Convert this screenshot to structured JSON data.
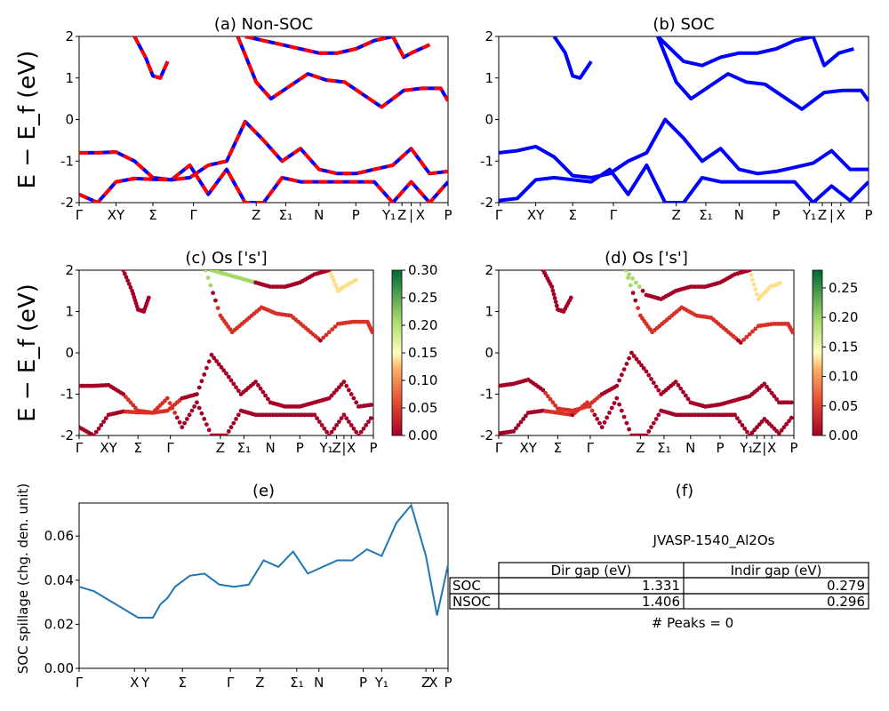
{
  "chart_data": [
    {
      "id": "a",
      "type": "line",
      "title": "(a) Non-SOC",
      "ylabel": "E − E_f (eV)",
      "ylim": [
        -2,
        2
      ],
      "yticks": [
        -2,
        -1,
        0,
        1,
        2
      ],
      "xlabels": [
        "Γ",
        "XY",
        "Σ",
        "Γ",
        "Z",
        "Σ₁",
        "N",
        "P",
        "Y₁",
        "Z",
        "|",
        "X",
        "P"
      ],
      "legend": "none",
      "series": [
        {
          "color": "#ff0000",
          "dashed": true,
          "x": [
            0,
            0.05,
            0.1,
            0.15,
            0.2,
            0.25,
            0.3,
            0.35,
            0.4,
            0.45,
            0.5,
            0.55,
            0.6,
            0.65,
            0.7,
            0.75,
            0.8,
            0.85,
            0.9,
            0.95,
            1.0
          ],
          "y": [
            -0.8,
            -0.8,
            -0.78,
            -1.0,
            -1.4,
            -1.45,
            -1.4,
            -1.1,
            -1.0,
            -0.05,
            -0.5,
            -1.0,
            -0.7,
            -1.2,
            -1.3,
            -1.3,
            -1.2,
            -1.1,
            -0.7,
            -1.3,
            -1.25
          ]
        },
        {
          "color": "#ff0000",
          "dashed": true,
          "x": [
            0,
            0.05,
            0.1,
            0.15,
            0.2,
            0.25,
            0.3,
            0.35,
            0.4,
            0.45,
            0.5,
            0.55,
            0.6,
            0.65,
            0.7,
            0.75,
            0.8,
            0.85,
            0.9,
            0.95,
            1.0
          ],
          "y": [
            -1.8,
            -2.0,
            -1.5,
            -1.42,
            -1.44,
            -1.45,
            -1.1,
            -1.8,
            -1.2,
            -2.0,
            -2.0,
            -1.4,
            -1.5,
            -1.5,
            -1.5,
            -1.5,
            -1.5,
            -2.0,
            -1.5,
            -2.0,
            -1.5
          ]
        },
        {
          "color": "#ff0000",
          "dashed": true,
          "x": [
            0.15,
            0.18,
            0.2,
            0.22,
            0.24
          ],
          "y": [
            2.0,
            1.5,
            1.05,
            1.0,
            1.4
          ]
        },
        {
          "color": "#ff0000",
          "dashed": true,
          "x": [
            0.43,
            0.48,
            0.52,
            0.57,
            0.62,
            0.67,
            0.72,
            0.77,
            0.82,
            0.88,
            0.93,
            0.98,
            1.0
          ],
          "y": [
            2.0,
            0.9,
            0.5,
            0.8,
            1.1,
            0.95,
            0.9,
            0.6,
            0.3,
            0.7,
            0.75,
            0.75,
            0.45
          ]
        },
        {
          "color": "#ff0000",
          "dashed": true,
          "x": [
            0.45,
            0.5,
            0.55,
            0.6,
            0.65,
            0.7,
            0.75,
            0.8,
            0.85,
            0.88,
            0.9,
            0.95
          ],
          "y": [
            2.0,
            1.9,
            1.8,
            1.7,
            1.6,
            1.6,
            1.7,
            1.9,
            2.0,
            1.5,
            1.6,
            1.8
          ]
        }
      ]
    },
    {
      "id": "b",
      "type": "line",
      "title": "(b) SOC",
      "ylim": [
        -2,
        2
      ],
      "yticks": [
        -2,
        -1,
        0,
        1,
        2
      ],
      "xlabels": [
        "Γ",
        "XY",
        "Σ",
        "Γ",
        "Z",
        "Σ₁",
        "N",
        "P",
        "Y₁",
        "Z",
        "|",
        "X",
        "P"
      ],
      "legend": "none",
      "series": [
        {
          "color": "#0000ff",
          "x": [
            0,
            0.05,
            0.1,
            0.15,
            0.2,
            0.25,
            0.3,
            0.35,
            0.4,
            0.45,
            0.5,
            0.55,
            0.6,
            0.65,
            0.7,
            0.75,
            0.8,
            0.85,
            0.9,
            0.95,
            1.0
          ],
          "y": [
            -0.8,
            -0.75,
            -0.65,
            -0.9,
            -1.35,
            -1.4,
            -1.3,
            -1.0,
            -0.8,
            0.0,
            -0.45,
            -1.0,
            -0.7,
            -1.2,
            -1.3,
            -1.25,
            -1.15,
            -1.05,
            -0.75,
            -1.2,
            -1.2
          ]
        },
        {
          "color": "#0000ff",
          "x": [
            0,
            0.05,
            0.1,
            0.15,
            0.2,
            0.25,
            0.3,
            0.35,
            0.4,
            0.45,
            0.5,
            0.55,
            0.6,
            0.65,
            0.7,
            0.75,
            0.8,
            0.85,
            0.9,
            0.95,
            1.0
          ],
          "y": [
            -1.95,
            -1.9,
            -1.45,
            -1.4,
            -1.45,
            -1.5,
            -1.2,
            -1.8,
            -1.1,
            -2.0,
            -2.0,
            -1.4,
            -1.5,
            -1.5,
            -1.5,
            -1.5,
            -1.5,
            -2.0,
            -1.6,
            -1.95,
            -1.5
          ]
        },
        {
          "color": "#0000ff",
          "x": [
            0.15,
            0.18,
            0.2,
            0.22,
            0.25
          ],
          "y": [
            2.0,
            1.6,
            1.05,
            1.0,
            1.4
          ]
        },
        {
          "color": "#0000ff",
          "x": [
            0.43,
            0.48,
            0.52,
            0.57,
            0.62,
            0.67,
            0.72,
            0.77,
            0.82,
            0.88,
            0.93,
            0.98,
            1.0
          ],
          "y": [
            2.0,
            0.9,
            0.5,
            0.8,
            1.1,
            0.9,
            0.85,
            0.55,
            0.25,
            0.65,
            0.7,
            0.7,
            0.45
          ]
        },
        {
          "color": "#0000ff",
          "x": [
            0.43,
            0.5,
            0.55,
            0.6,
            0.65,
            0.7,
            0.75,
            0.8,
            0.85,
            0.88,
            0.92,
            0.96
          ],
          "y": [
            2.0,
            1.4,
            1.3,
            1.5,
            1.6,
            1.6,
            1.7,
            1.9,
            2.0,
            1.3,
            1.6,
            1.7
          ]
        }
      ]
    },
    {
      "id": "c",
      "type": "scatter",
      "title": "(c)  Os ['s']",
      "ylabel": "E − E_f (eV)",
      "ylim": [
        -2,
        2
      ],
      "yticks": [
        -2,
        -1,
        0,
        1,
        2
      ],
      "xlabels": [
        "Γ",
        "XY",
        "Σ",
        "Γ",
        "Z",
        "Σ₁",
        "N",
        "P",
        "Y₁",
        "Z",
        "|",
        "X",
        "P"
      ],
      "colorbar": {
        "min": 0.0,
        "max": 0.3,
        "ticks": [
          "0.00",
          "0.05",
          "0.10",
          "0.15",
          "0.20",
          "0.25",
          "0.30"
        ]
      },
      "points_note": "scatter projection along band lines"
    },
    {
      "id": "d",
      "type": "scatter",
      "title": "(d) Os ['s']",
      "ylim": [
        -2,
        2
      ],
      "yticks": [
        -2,
        -1,
        0,
        1,
        2
      ],
      "xlabels": [
        "Γ",
        "XY",
        "Σ",
        "Γ",
        "Z",
        "Σ₁",
        "N",
        "P",
        "Y₁",
        "Z",
        "|",
        "X",
        "P"
      ],
      "colorbar": {
        "min": 0.0,
        "max": 0.28,
        "ticks": [
          "0.00",
          "0.05",
          "0.10",
          "0.15",
          "0.20",
          "0.25"
        ]
      }
    },
    {
      "id": "e",
      "type": "line",
      "title": "(e)",
      "ylabel": "SOC spillage (chg. den. unit)",
      "ylim": [
        0.0,
        0.075
      ],
      "yticks": [
        "0.00",
        "0.02",
        "0.04",
        "0.06"
      ],
      "xlabels": [
        "Γ",
        "X",
        "Y",
        "Σ",
        "Γ",
        "Z",
        "Σ₁",
        "N",
        "P",
        "Y₁",
        "Z",
        "X",
        "P"
      ],
      "series": [
        {
          "color": "#1f77b4",
          "x": [
            0,
            0.04,
            0.08,
            0.12,
            0.16,
            0.2,
            0.22,
            0.24,
            0.26,
            0.3,
            0.34,
            0.38,
            0.42,
            0.46,
            0.5,
            0.54,
            0.58,
            0.62,
            0.66,
            0.7,
            0.74,
            0.78,
            0.82,
            0.86,
            0.9,
            0.94,
            0.97,
            1.0
          ],
          "y": [
            0.037,
            0.035,
            0.031,
            0.027,
            0.023,
            0.023,
            0.029,
            0.032,
            0.037,
            0.042,
            0.043,
            0.038,
            0.037,
            0.038,
            0.049,
            0.046,
            0.053,
            0.043,
            0.046,
            0.049,
            0.049,
            0.054,
            0.051,
            0.066,
            0.074,
            0.051,
            0.024,
            0.047
          ]
        }
      ]
    }
  ],
  "panel_f": {
    "title": "(f)",
    "material": "JVASP-1540_Al2Os",
    "table": {
      "columns": [
        "Dir gap (eV)",
        "Indir gap (eV)"
      ],
      "rows": [
        {
          "label": "SOC",
          "dir": "1.331",
          "indir": "0.279"
        },
        {
          "label": "NSOC",
          "dir": "1.406",
          "indir": "0.296"
        }
      ]
    },
    "peaks": "# Peaks = 0"
  }
}
